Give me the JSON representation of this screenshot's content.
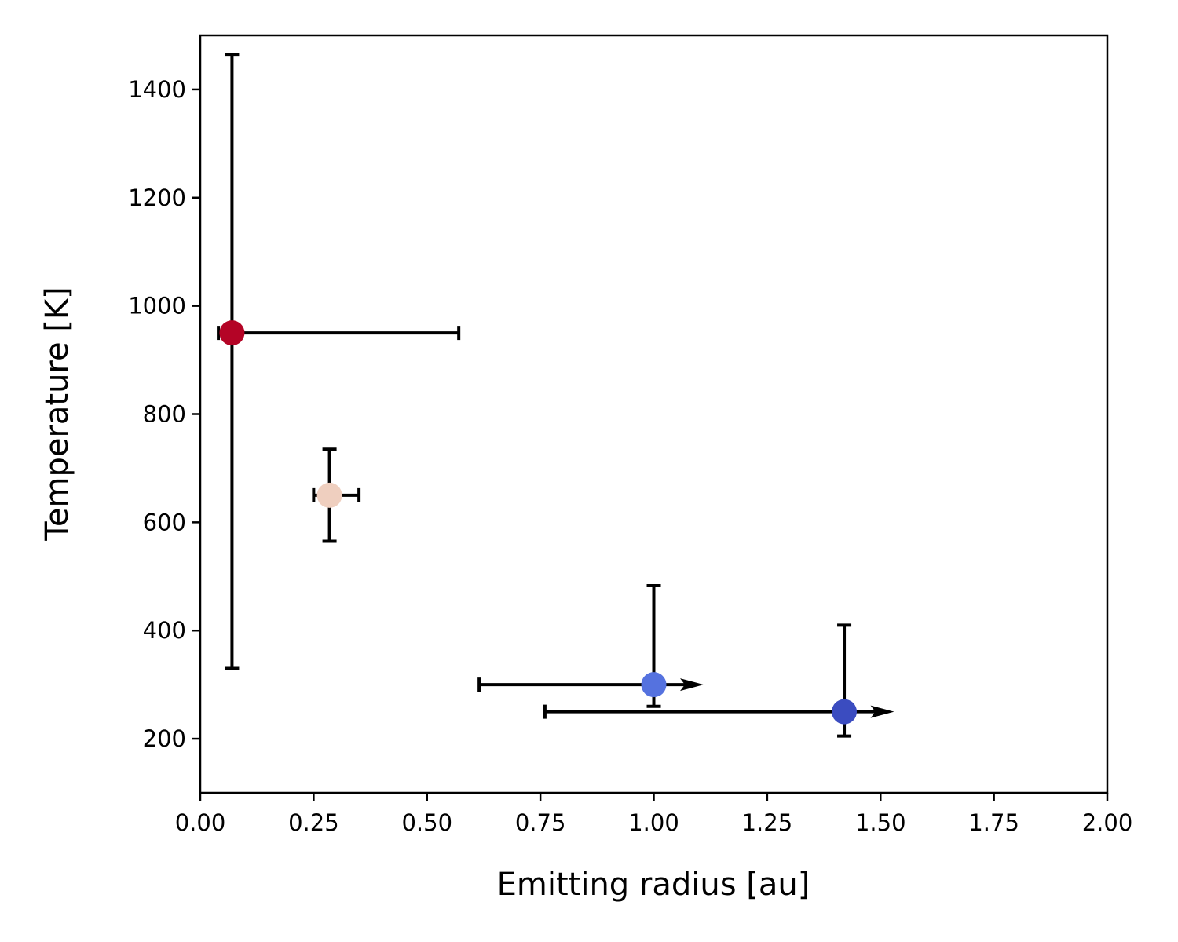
{
  "chart_data": {
    "type": "scatter",
    "xlabel": "Emitting radius [au]",
    "ylabel": "Temperature [K]",
    "xlim": [
      0.0,
      2.0
    ],
    "ylim": [
      100,
      1500
    ],
    "xticks": [
      "0.00",
      "0.25",
      "0.50",
      "0.75",
      "1.00",
      "1.25",
      "1.50",
      "1.75",
      "2.00"
    ],
    "yticks": [
      "200",
      "400",
      "600",
      "800",
      "1000",
      "1200",
      "1400"
    ],
    "grid": false,
    "legend": "none",
    "points": [
      {
        "x": 0.07,
        "y": 950,
        "x_low": 0.04,
        "x_high": 0.57,
        "x_lower_limit": false,
        "y_low": 330,
        "y_high": 1465,
        "color": "#b40426"
      },
      {
        "x": 0.285,
        "y": 650,
        "x_low": 0.25,
        "x_high": 0.35,
        "x_lower_limit": false,
        "y_low": 565,
        "y_high": 735,
        "color": "#efcfbf"
      },
      {
        "x": 1.0,
        "y": 300,
        "x_low": 0.615,
        "x_high": 1.11,
        "x_lower_limit": true,
        "y_low": 260,
        "y_high": 483,
        "color": "#5572df"
      },
      {
        "x": 1.42,
        "y": 250,
        "x_low": 0.76,
        "x_high": 1.53,
        "x_lower_limit": true,
        "y_low": 205,
        "y_high": 410,
        "color": "#3b4cc0"
      }
    ]
  }
}
